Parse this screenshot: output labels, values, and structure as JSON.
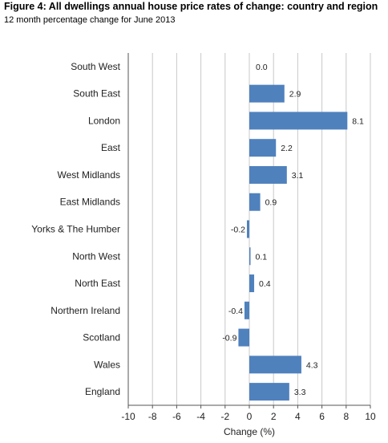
{
  "header": {
    "title": "Figure 4: All dwellings annual house price rates of change: country and region",
    "subtitle": "12 month percentage change for June 2013"
  },
  "chart_data": {
    "type": "bar",
    "orientation": "horizontal",
    "categories": [
      "South West",
      "South East",
      "London",
      "East",
      "West Midlands",
      "East Midlands",
      "Yorks & The Humber",
      "North West",
      "North East",
      "Northern Ireland",
      "Scotland",
      "Wales",
      "England"
    ],
    "values": [
      0.0,
      2.9,
      8.1,
      2.2,
      3.1,
      0.9,
      -0.2,
      0.1,
      0.4,
      -0.4,
      -0.9,
      4.3,
      3.3
    ],
    "data_labels": [
      "0.0",
      "2.9",
      "8.1",
      "2.2",
      "3.1",
      "0.9",
      "-0.2",
      "0.1",
      "0.4",
      "-0.4",
      "-0.9",
      "4.3",
      "3.3"
    ],
    "xlabel": "Change (%)",
    "ylabel": "",
    "xlim": [
      -10,
      10
    ],
    "xticks": [
      "-10",
      "-8",
      "-6",
      "-4",
      "-2",
      "0",
      "2",
      "4",
      "6",
      "8",
      "10"
    ],
    "grid": "vertical",
    "legend": "none",
    "bar_color": "#4f81bd"
  }
}
